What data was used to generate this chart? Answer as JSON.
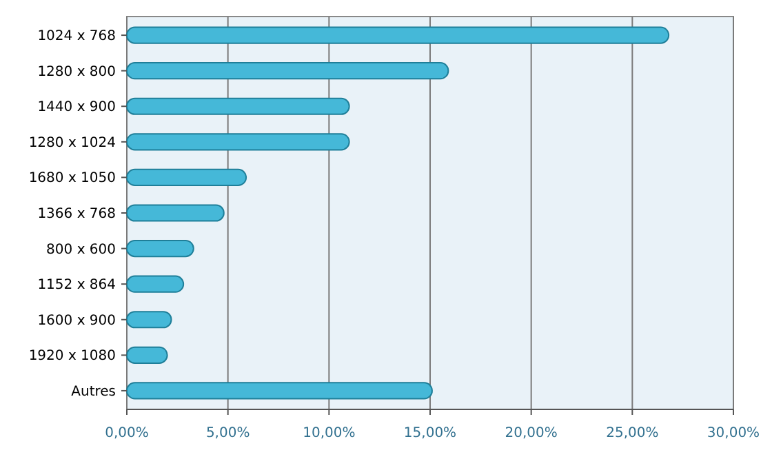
{
  "chart_data": {
    "type": "bar",
    "orientation": "horizontal",
    "categories": [
      "1024 x 768",
      "1280 x 800",
      "1440 x 900",
      "1280 x 1024",
      "1680 x 1050",
      "1366 x 768",
      "800 x 600",
      "1152 x 864",
      "1600 x 900",
      "1920 x 1080",
      "Autres"
    ],
    "values": [
      26.8,
      15.9,
      11.0,
      11.0,
      5.9,
      4.8,
      3.3,
      2.8,
      2.2,
      2.0,
      15.1
    ],
    "color": "#45b8d8",
    "xlim": [
      0,
      30
    ],
    "xticks": [
      {
        "value": 0,
        "label": "0,00%"
      },
      {
        "value": 5,
        "label": "5,00%"
      },
      {
        "value": 10,
        "label": "10,00%"
      },
      {
        "value": 15,
        "label": "15,00%"
      },
      {
        "value": 20,
        "label": "20,00%"
      },
      {
        "value": 25,
        "label": "25,00%"
      },
      {
        "value": 30,
        "label": "30,00%"
      }
    ],
    "grid": "x"
  }
}
